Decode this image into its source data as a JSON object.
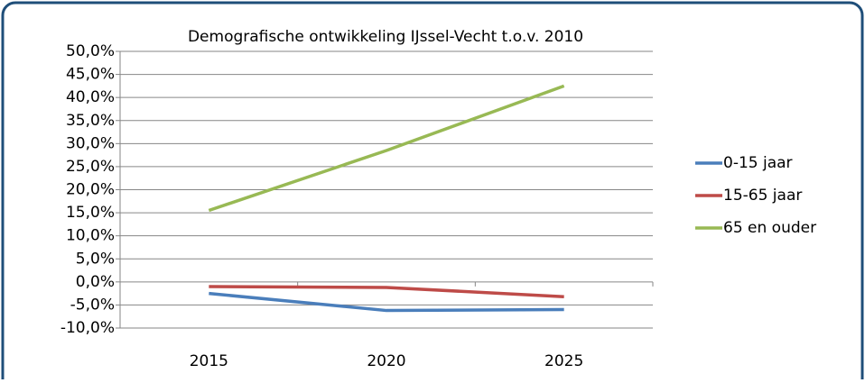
{
  "chart_data": {
    "type": "line",
    "title": "Demografische ontwikkeling IJssel-Vecht t.o.v. 2010",
    "categories": [
      "2015",
      "2020",
      "2025"
    ],
    "series": [
      {
        "name": "0-15 jaar",
        "color": "#4a7ebb",
        "values": [
          -2.5,
          -6.2,
          -6.0
        ]
      },
      {
        "name": "15-65 jaar",
        "color": "#be4b48",
        "values": [
          -1.0,
          -1.2,
          -3.2
        ]
      },
      {
        "name": "65 en ouder",
        "color": "#98b954",
        "values": [
          15.5,
          28.5,
          42.5
        ]
      }
    ],
    "ylim": [
      -10,
      50
    ],
    "yticks": [
      {
        "value": -10,
        "label": "-10,0%"
      },
      {
        "value": -5,
        "label": "-5,0%"
      },
      {
        "value": 0,
        "label": "0,0%"
      },
      {
        "value": 5,
        "label": "5,0%"
      },
      {
        "value": 10,
        "label": "10,0%"
      },
      {
        "value": 15,
        "label": "15,0%"
      },
      {
        "value": 20,
        "label": "20,0%"
      },
      {
        "value": 25,
        "label": "25,0%"
      },
      {
        "value": 30,
        "label": "30,0%"
      },
      {
        "value": 35,
        "label": "35,0%"
      },
      {
        "value": 40,
        "label": "40,0%"
      },
      {
        "value": 45,
        "label": "45,0%"
      },
      {
        "value": 50,
        "label": "50,0%"
      }
    ],
    "grid": true,
    "legend": "right"
  }
}
